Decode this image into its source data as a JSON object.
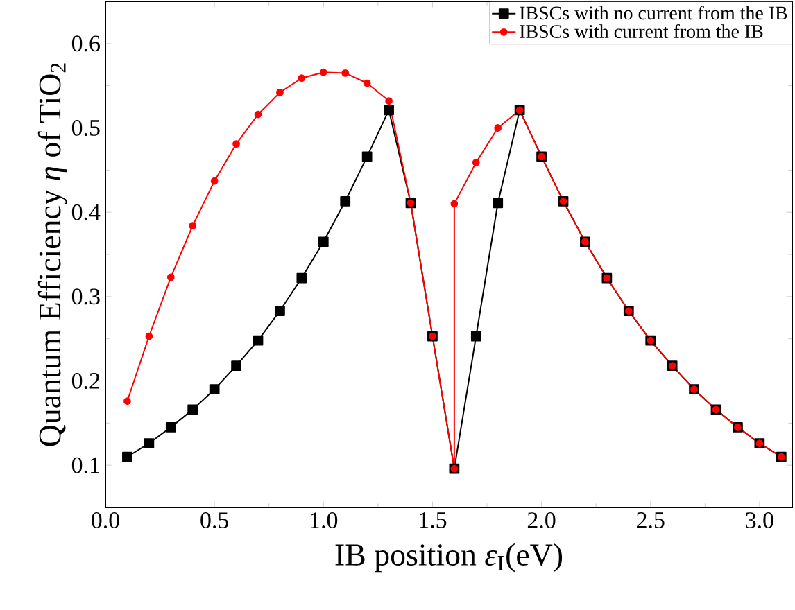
{
  "chart_data": {
    "type": "line",
    "xlabel": "IB position *ε*$_{I}$(eV)",
    "ylabel": "Quantum Efficiency *η* of TiO$_{2}$",
    "x": [
      0.1,
      0.2,
      0.3,
      0.4,
      0.5,
      0.6,
      0.7,
      0.8,
      0.9,
      1.0,
      1.1,
      1.2,
      1.3,
      1.4,
      1.5,
      1.6,
      1.7,
      1.8,
      1.9,
      2.0,
      2.1,
      2.2,
      2.3,
      2.4,
      2.5,
      2.6,
      2.7,
      2.8,
      2.9,
      3.0,
      3.1
    ],
    "series": [
      {
        "name": "IBSCs with no current from the IB",
        "color": "#000000",
        "marker": "square",
        "values": [
          0.11,
          0.126,
          0.145,
          0.166,
          0.19,
          0.218,
          0.248,
          0.283,
          0.322,
          0.365,
          0.413,
          0.466,
          0.521,
          0.411,
          0.253,
          0.096,
          0.253,
          0.411,
          0.521,
          0.466,
          0.413,
          0.365,
          0.322,
          0.283,
          0.248,
          0.218,
          0.19,
          0.166,
          0.145,
          0.126,
          0.11
        ]
      },
      {
        "name": "IBSCs with current from the IB",
        "color": "#ff0000",
        "marker": "circle",
        "x": [
          0.1,
          0.2,
          0.3,
          0.4,
          0.5,
          0.6,
          0.7,
          0.8,
          0.9,
          1.0,
          1.1,
          1.2,
          1.3,
          1.4,
          1.5,
          1.6,
          1.6,
          1.7,
          1.8,
          1.9,
          2.0,
          2.1,
          2.2,
          2.3,
          2.4,
          2.5,
          2.6,
          2.7,
          2.8,
          2.9,
          3.0,
          3.1
        ],
        "values": [
          0.176,
          0.253,
          0.323,
          0.384,
          0.437,
          0.481,
          0.516,
          0.542,
          0.559,
          0.566,
          0.565,
          0.553,
          0.532,
          0.411,
          0.253,
          0.096,
          0.41,
          0.459,
          0.5,
          0.521,
          0.466,
          0.413,
          0.365,
          0.322,
          0.283,
          0.248,
          0.218,
          0.19,
          0.166,
          0.145,
          0.126,
          0.11
        ]
      }
    ],
    "xlim": [
      0.0,
      3.15
    ],
    "xticks": [
      {
        "value": 0,
        "label": "0.0"
      },
      0.5,
      {
        "value": 1,
        "label": "1.0"
      },
      1.5,
      {
        "value": 2,
        "label": "2.0"
      },
      2.5,
      {
        "value": 3,
        "label": "3.0"
      }
    ],
    "ylim": [
      0.05,
      0.65
    ],
    "yticks": [
      0.1,
      0.2,
      0.3,
      0.4,
      0.5,
      0.6
    ],
    "grid": false,
    "legend": "top right",
    "line_style": "solid"
  }
}
